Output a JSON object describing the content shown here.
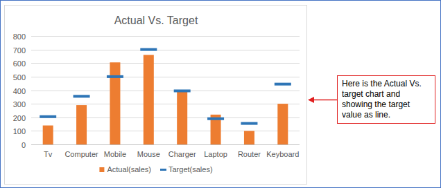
{
  "chart_data": {
    "type": "bar",
    "title": "Actual Vs. Target",
    "categories": [
      "Tv",
      "Computer",
      "Mobile",
      "Mouse",
      "Charger",
      "Laptop",
      "Router",
      "Keyboard"
    ],
    "series": [
      {
        "name": "Actual(sales)",
        "type": "bar",
        "color": "#ed7d31",
        "values": [
          140,
          290,
          605,
          660,
          390,
          220,
          100,
          300
        ]
      },
      {
        "name": "Target(sales)",
        "type": "line",
        "color": "#2e75b6",
        "marker": "dash",
        "line_style": "none",
        "values": [
          205,
          355,
          500,
          700,
          395,
          190,
          155,
          445
        ]
      }
    ],
    "ylim": [
      0,
      800
    ],
    "yticks": [
      0,
      100,
      200,
      300,
      400,
      500,
      600,
      700,
      800
    ],
    "grid": true,
    "legend": "bottom",
    "annotation": "Here is the Actual Vs. target chart and showing the target value as line."
  }
}
